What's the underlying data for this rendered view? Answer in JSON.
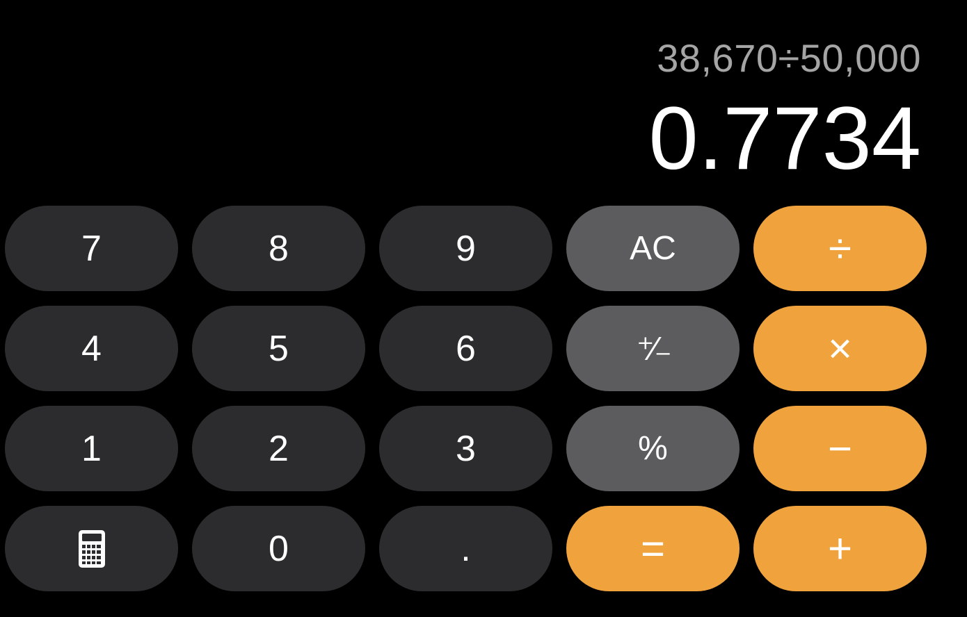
{
  "display": {
    "expression": "38,670÷50,000",
    "result": "0.7734"
  },
  "keys": {
    "seven": "7",
    "eight": "8",
    "nine": "9",
    "clear": "AC",
    "divide": "÷",
    "four": "4",
    "five": "5",
    "six": "6",
    "plus_minus": "⁺∕₋",
    "multiply": "×",
    "one": "1",
    "two": "2",
    "three": "3",
    "percent": "%",
    "minus": "−",
    "calculator_icon": "calculator-icon",
    "zero": "0",
    "decimal": ".",
    "equals": "=",
    "plus": "+"
  },
  "colors": {
    "background": "#000000",
    "digit_key": "#2c2c2e",
    "function_key": "#5c5c5e",
    "operator_key": "#f0a33c",
    "expression_text": "#a5a5a5",
    "result_text": "#ffffff"
  }
}
